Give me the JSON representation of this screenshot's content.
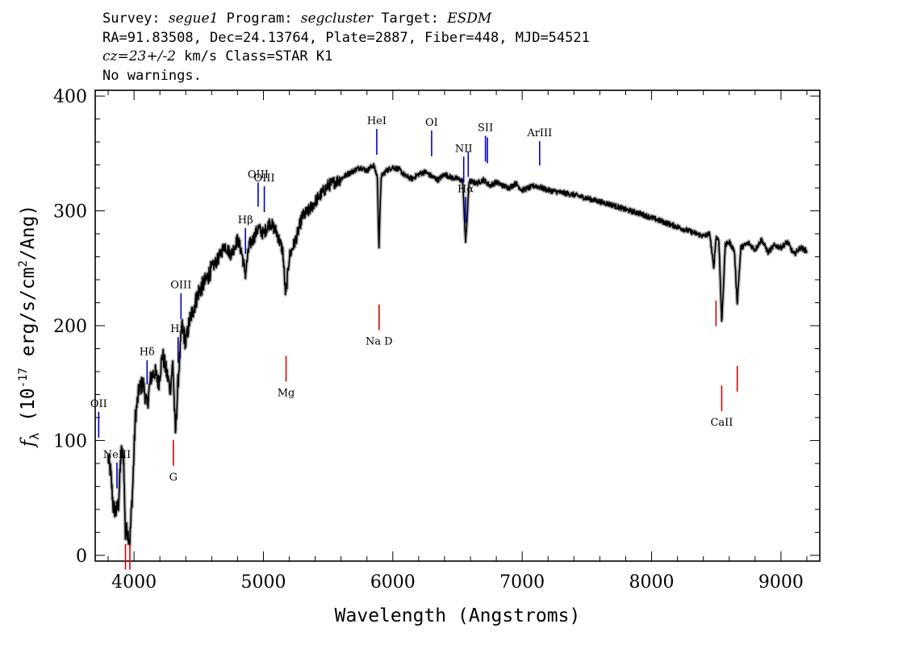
{
  "header": {
    "survey_label": "Survey: ",
    "survey": "segue1",
    "program_label": " Program: ",
    "program": "segcluster",
    "target_label": " Target: ",
    "target": "ESDM",
    "line2": "RA=91.83508, Dec=24.13764, Plate=2887, Fiber=448, MJD=54521",
    "cz": "cz=23+/-2",
    "line3_rest": " km/s Class=STAR K1",
    "line4": "No warnings."
  },
  "chart_data": {
    "type": "line",
    "title": "",
    "xlabel": "Wavelength (Angstroms)",
    "ylabel": "f_λ (10^-17 erg/s/cm^2/Ang)",
    "xlim": [
      3700,
      9300
    ],
    "ylim": [
      -5,
      405
    ],
    "x_ticks": [
      4000,
      5000,
      6000,
      7000,
      8000,
      9000
    ],
    "y_ticks": [
      0,
      100,
      200,
      300,
      400
    ],
    "colors": {
      "spectrum": "#000000",
      "error": "#b4b4b4",
      "emission": "#0000cc",
      "absorption": "#dd0000"
    },
    "series": [
      {
        "name": "",
        "x": [
          3800,
          3820,
          3840,
          3860,
          3880,
          3900,
          3920,
          3933,
          3945,
          3968,
          3990,
          4010,
          4040,
          4070,
          4101,
          4130,
          4160,
          4190,
          4220,
          4250,
          4280,
          4300,
          4320,
          4340,
          4370,
          4400,
          4430,
          4460,
          4500,
          4550,
          4600,
          4650,
          4700,
          4750,
          4800,
          4830,
          4861,
          4890,
          4920,
          4960,
          5000,
          5050,
          5100,
          5150,
          5172,
          5200,
          5250,
          5300,
          5350,
          5400,
          5450,
          5500,
          5550,
          5600,
          5650,
          5700,
          5750,
          5800,
          5850,
          5880,
          5893,
          5910,
          5950,
          6000,
          6050,
          6100,
          6150,
          6200,
          6250,
          6300,
          6350,
          6400,
          6450,
          6500,
          6540,
          6563,
          6590,
          6650,
          6700,
          6750,
          6800,
          6850,
          6900,
          6950,
          7000,
          7100,
          7200,
          7300,
          7400,
          7500,
          7600,
          7700,
          7800,
          7900,
          8000,
          8100,
          8200,
          8300,
          8400,
          8450,
          8480,
          8498,
          8520,
          8542,
          8570,
          8600,
          8640,
          8662,
          8690,
          8750,
          8800,
          8850,
          8900,
          8950,
          9000,
          9050,
          9100,
          9150,
          9200
        ],
        "y": [
          85,
          72,
          42,
          38,
          45,
          90,
          85,
          18,
          22,
          14,
          60,
          120,
          145,
          150,
          130,
          155,
          160,
          150,
          175,
          160,
          145,
          168,
          105,
          150,
          200,
          185,
          205,
          215,
          230,
          238,
          250,
          258,
          270,
          262,
          275,
          265,
          245,
          270,
          275,
          285,
          280,
          290,
          282,
          265,
          225,
          260,
          275,
          295,
          300,
          308,
          315,
          322,
          325,
          328,
          332,
          335,
          338,
          335,
          340,
          330,
          270,
          330,
          335,
          338,
          336,
          330,
          328,
          332,
          334,
          330,
          327,
          332,
          329,
          328,
          326,
          272,
          326,
          324,
          327,
          322,
          325,
          322,
          320,
          324,
          318,
          322,
          318,
          316,
          314,
          311,
          308,
          305,
          301,
          298,
          294,
          290,
          286,
          282,
          278,
          280,
          250,
          277,
          275,
          203,
          270,
          273,
          265,
          220,
          268,
          272,
          266,
          275,
          264,
          270,
          268,
          273,
          262,
          268,
          265
        ]
      }
    ],
    "emission_lines": [
      {
        "label": "OII",
        "wave": 3727
      },
      {
        "label": "NeIII",
        "wave": 3868
      },
      {
        "label": "Hδ",
        "wave": 4101
      },
      {
        "label": "Hγ",
        "wave": 4340
      },
      {
        "label": "OIII",
        "wave": 4363
      },
      {
        "label": "Hβ",
        "wave": 4861
      },
      {
        "label": "OIII",
        "wave": 4959
      },
      {
        "label": "OIII",
        "wave": 5007
      },
      {
        "label": "HeI",
        "wave": 5876
      },
      {
        "label": "OI",
        "wave": 6300
      },
      {
        "label": "NII",
        "wave": 6548
      },
      {
        "label": "Hα",
        "wave": 6563
      },
      {
        "label": "NII",
        "wave": 6583
      },
      {
        "label": "SII",
        "wave": 6716
      },
      {
        "label": "SII",
        "wave": 6731
      },
      {
        "label": "ArIII",
        "wave": 7135
      }
    ],
    "absorption_lines": [
      {
        "label": "",
        "wave": 3934
      },
      {
        "label": "",
        "wave": 3968
      },
      {
        "label": "G",
        "wave": 4304
      },
      {
        "label": "Mg",
        "wave": 5175
      },
      {
        "label": "Na D",
        "wave": 5894
      },
      {
        "label": "",
        "wave": 8498
      },
      {
        "label": "CaII",
        "wave": 8542
      },
      {
        "label": "",
        "wave": 8662
      }
    ]
  }
}
